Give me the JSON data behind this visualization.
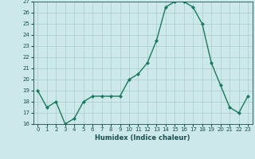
{
  "x": [
    0,
    1,
    2,
    3,
    4,
    5,
    6,
    7,
    8,
    9,
    10,
    11,
    12,
    13,
    14,
    15,
    16,
    17,
    18,
    19,
    20,
    21,
    22,
    23
  ],
  "y": [
    19,
    17.5,
    18,
    16,
    16.5,
    18,
    18.5,
    18.5,
    18.5,
    18.5,
    20,
    20.5,
    21.5,
    23.5,
    26.5,
    27,
    27,
    26.5,
    25,
    21.5,
    19.5,
    17.5,
    17,
    18.5
  ],
  "title": "",
  "xlabel": "Humidex (Indice chaleur)",
  "ylabel": "",
  "ylim": [
    16,
    27
  ],
  "xlim_min": -0.5,
  "xlim_max": 23.5,
  "yticks": [
    16,
    17,
    18,
    19,
    20,
    21,
    22,
    23,
    24,
    25,
    26,
    27
  ],
  "xticks": [
    0,
    1,
    2,
    3,
    4,
    5,
    6,
    7,
    8,
    9,
    10,
    11,
    12,
    13,
    14,
    15,
    16,
    17,
    18,
    19,
    20,
    21,
    22,
    23
  ],
  "line_color": "#1a7a5e",
  "marker_color": "#1a7a5e",
  "bg_color": "#cce8e8",
  "grid_color": "#aacccc",
  "axis_label_color": "#1a5050",
  "tick_color": "#1a5050",
  "tick_fontsize": 5.0,
  "xlabel_fontsize": 6.0,
  "linewidth": 1.0,
  "markersize": 2.0
}
